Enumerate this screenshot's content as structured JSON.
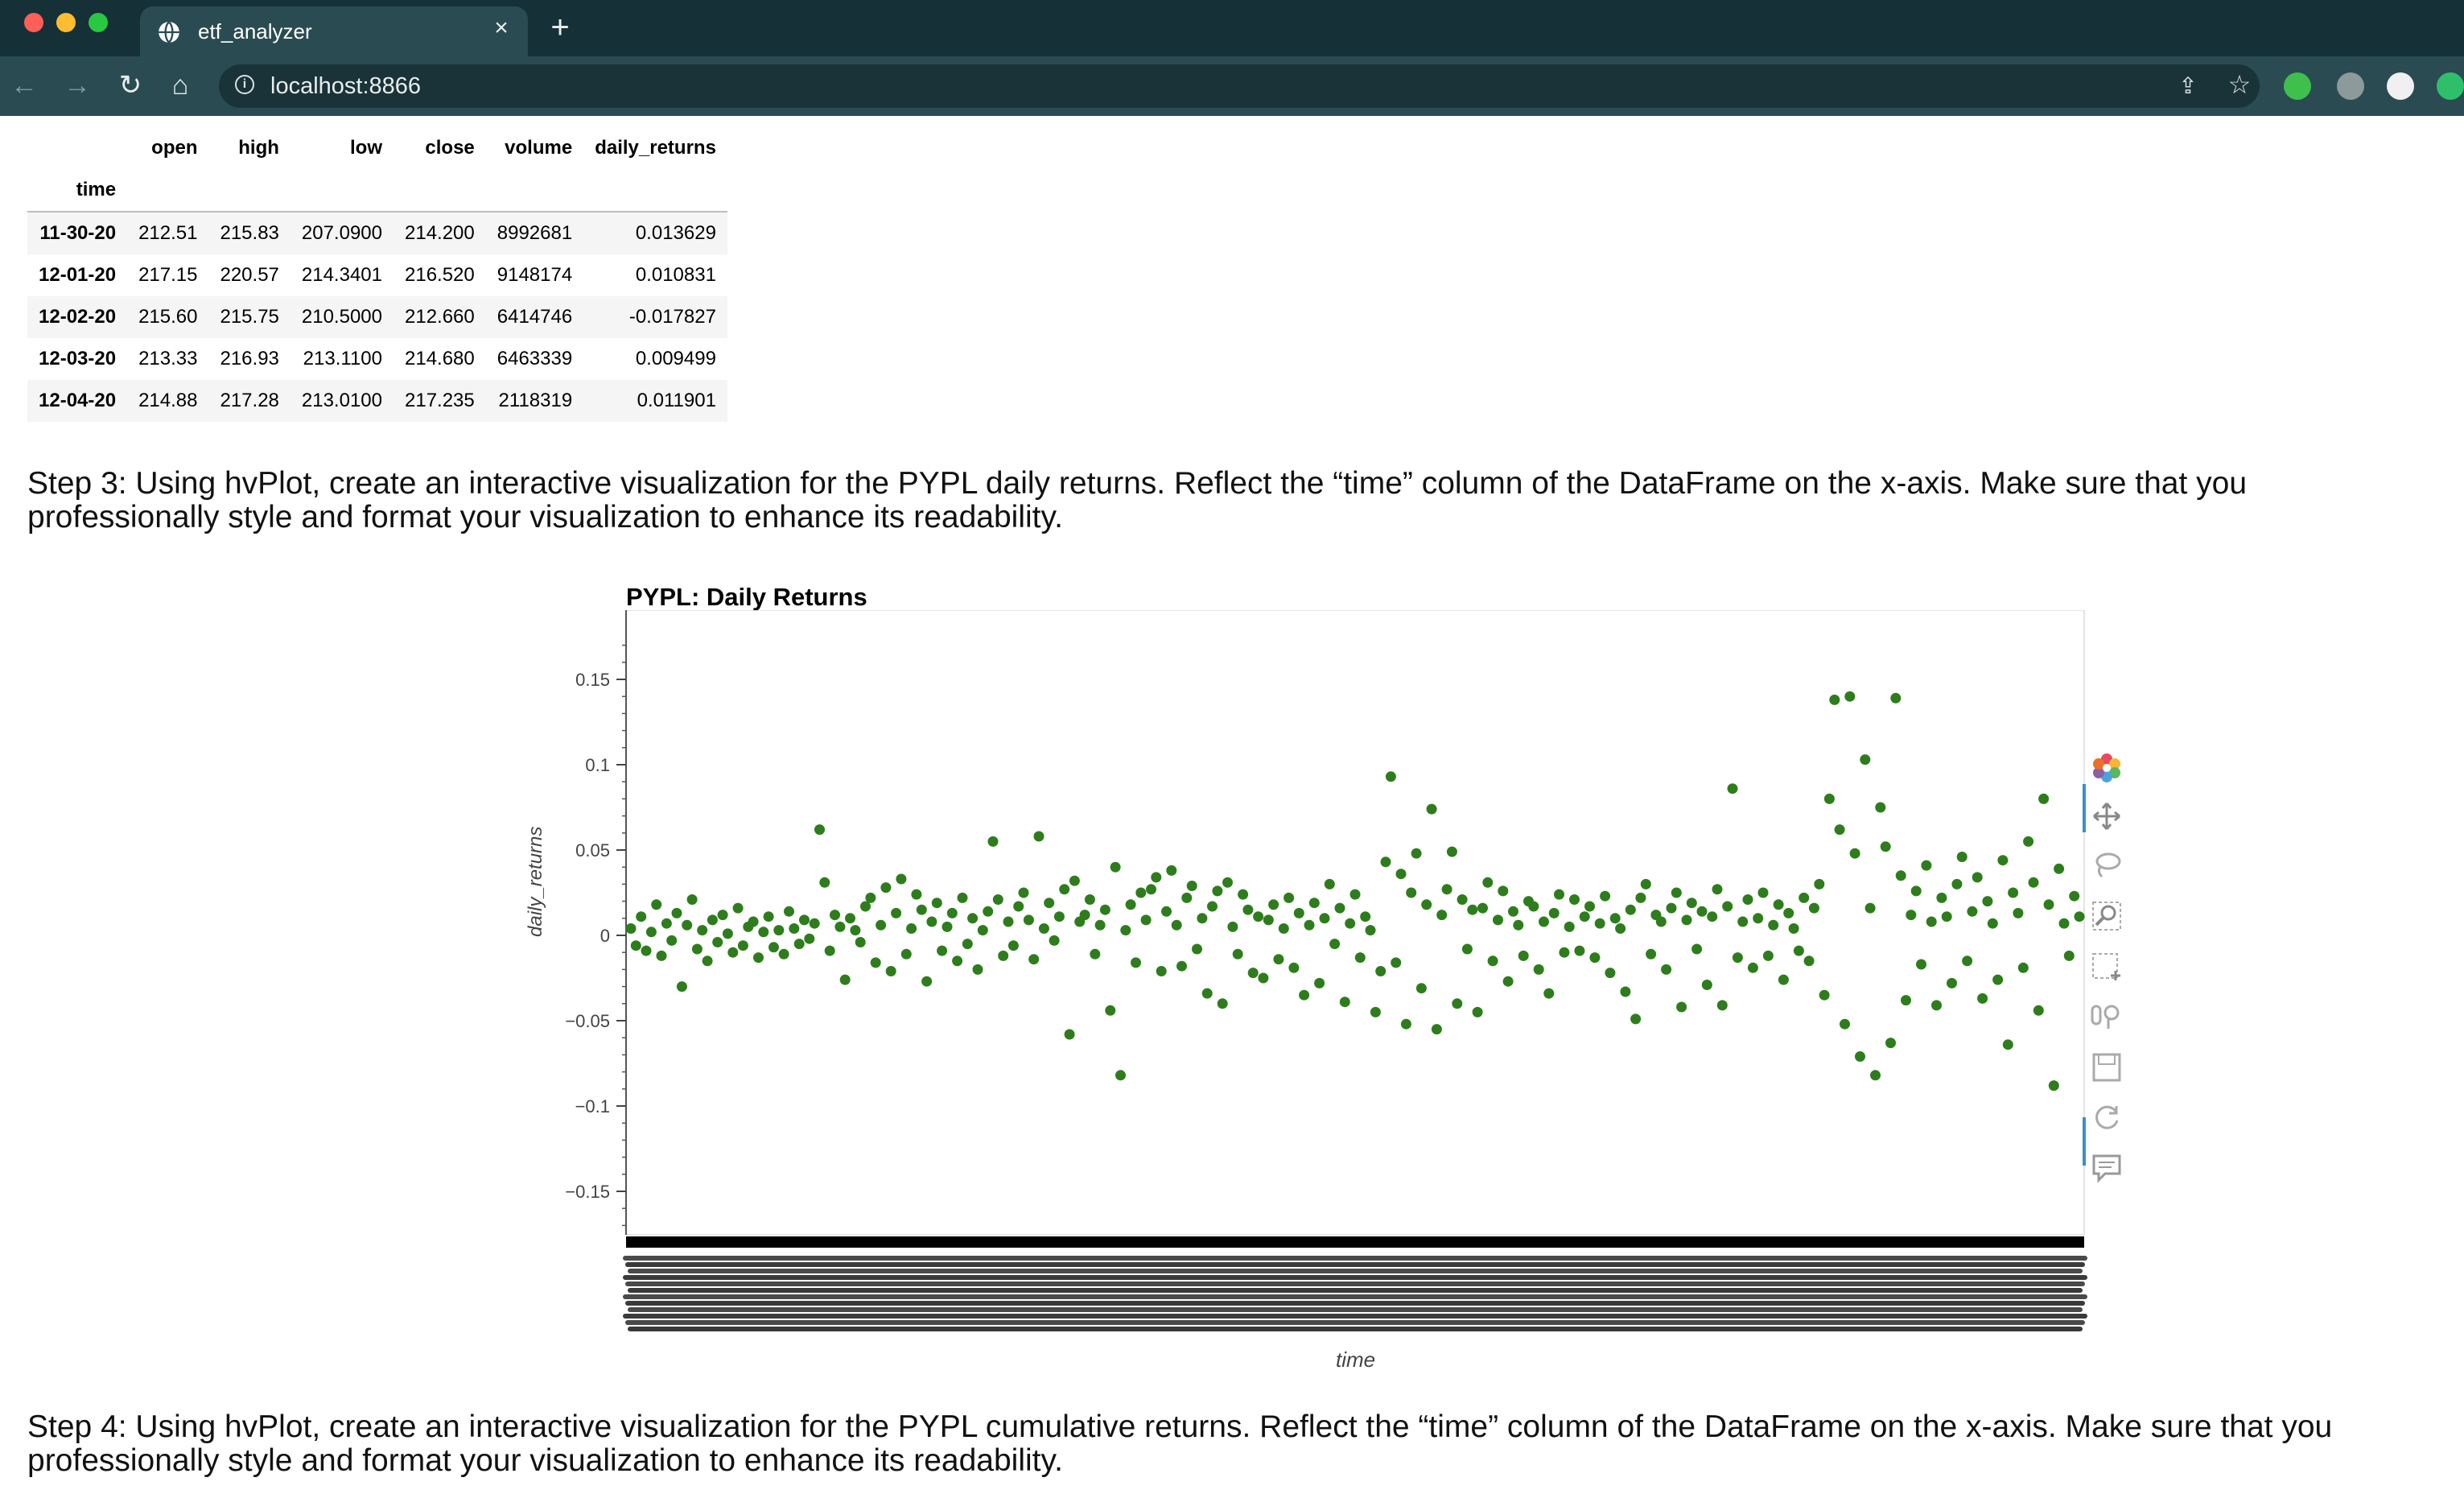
{
  "browser": {
    "tab_title": "etf_analyzer",
    "url": "localhost:8866",
    "new_tab_symbol": "+",
    "close_symbol": "×"
  },
  "dataframe": {
    "columns": [
      "open",
      "high",
      "low",
      "close",
      "volume",
      "daily_returns"
    ],
    "index_name": "time",
    "rows": [
      {
        "time": "11-30-20",
        "open": "212.51",
        "high": "215.83",
        "low": "207.0900",
        "close": "214.200",
        "volume": "8992681",
        "daily_returns": "0.013629"
      },
      {
        "time": "12-01-20",
        "open": "217.15",
        "high": "220.57",
        "low": "214.3401",
        "close": "216.520",
        "volume": "9148174",
        "daily_returns": "0.010831"
      },
      {
        "time": "12-02-20",
        "open": "215.60",
        "high": "215.75",
        "low": "210.5000",
        "close": "212.660",
        "volume": "6414746",
        "daily_returns": "-0.017827"
      },
      {
        "time": "12-03-20",
        "open": "213.33",
        "high": "216.93",
        "low": "213.1100",
        "close": "214.680",
        "volume": "6463339",
        "daily_returns": "0.009499"
      },
      {
        "time": "12-04-20",
        "open": "214.88",
        "high": "217.28",
        "low": "213.0100",
        "close": "217.235",
        "volume": "2118319",
        "daily_returns": "0.011901"
      }
    ]
  },
  "steps": {
    "step3": "Step 3: Using hvPlot, create an interactive visualization for the PYPL daily returns. Reflect the “time” column of the DataFrame on the x-axis. Make sure that you professionally style and format your visualization to enhance its readability.",
    "step4": "Step 4: Using hvPlot, create an interactive visualization for the PYPL cumulative returns. Reflect the “time” column of the DataFrame on the x-axis. Make sure that you professionally style and format your visualization to enhance its readability."
  },
  "chart_data": {
    "type": "scatter",
    "title": "PYPL: Daily Returns",
    "xlabel": "time",
    "ylabel": "daily_returns",
    "ylim": [
      -0.17,
      0.17
    ],
    "yticks": [
      0.15,
      0.1,
      0.05,
      0,
      -0.05,
      -0.1,
      -0.15
    ],
    "ytick_labels": [
      "0.15",
      "0.1",
      "0.05",
      "0",
      "−0.05",
      "−0.1",
      "−0.15"
    ],
    "grid": false,
    "marker_color": "#2e7d1c",
    "series": [
      {
        "values": [
          0.004,
          -0.006,
          0.011,
          -0.009,
          0.002,
          0.018,
          -0.012,
          0.007,
          -0.003,
          0.013,
          -0.03,
          0.006,
          0.021,
          -0.008,
          0.003,
          -0.015,
          0.009,
          -0.004,
          0.012,
          0.001,
          -0.01,
          0.016,
          -0.006,
          0.005,
          0.008,
          -0.013,
          0.002,
          0.011,
          -0.007,
          0.003,
          -0.011,
          0.014,
          0.004,
          -0.005,
          0.009,
          -0.002,
          0.007,
          0.062,
          0.031,
          -0.009,
          0.012,
          0.005,
          -0.026,
          0.01,
          0.003,
          -0.004,
          0.017,
          0.022,
          -0.016,
          0.006,
          0.028,
          -0.021,
          0.013,
          0.033,
          -0.011,
          0.004,
          0.024,
          0.015,
          -0.027,
          0.008,
          0.019,
          -0.009,
          0.005,
          0.013,
          -0.015,
          0.022,
          -0.005,
          0.01,
          -0.02,
          0.003,
          0.014,
          0.055,
          0.021,
          -0.012,
          0.008,
          -0.006,
          0.017,
          0.025,
          0.009,
          -0.014,
          0.058,
          0.004,
          0.019,
          -0.003,
          0.011,
          0.027,
          -0.058,
          0.032,
          0.008,
          0.012,
          0.021,
          -0.011,
          0.006,
          0.015,
          -0.044,
          0.04,
          -0.082,
          0.003,
          0.018,
          -0.016,
          0.025,
          0.009,
          0.027,
          0.034,
          -0.021,
          0.014,
          0.038,
          0.006,
          -0.018,
          0.022,
          0.029,
          -0.008,
          0.01,
          -0.034,
          0.017,
          0.026,
          -0.04,
          0.031,
          0.005,
          -0.011,
          0.024,
          0.015,
          -0.022,
          0.011,
          -0.025,
          0.009,
          0.018,
          -0.014,
          0.004,
          0.022,
          -0.019,
          0.013,
          -0.035,
          0.006,
          0.019,
          -0.028,
          0.01,
          0.03,
          -0.005,
          0.016,
          -0.039,
          0.007,
          0.024,
          -0.013,
          0.011,
          0.003,
          -0.045,
          -0.021,
          0.043,
          0.093,
          -0.016,
          0.036,
          -0.052,
          0.025,
          0.048,
          -0.031,
          0.018,
          0.074,
          -0.055,
          0.012,
          0.027,
          0.049,
          -0.04,
          0.021,
          -0.008,
          0.015,
          -0.045,
          0.016,
          0.031,
          -0.015,
          0.009,
          0.026,
          -0.027,
          0.014,
          0.006,
          -0.012,
          0.02,
          0.017,
          -0.02,
          0.008,
          -0.034,
          0.013,
          0.024,
          -0.01,
          0.005,
          0.021,
          -0.009,
          0.011,
          0.017,
          -0.013,
          0.007,
          0.023,
          -0.022,
          0.01,
          0.004,
          -0.033,
          0.015,
          -0.049,
          0.022,
          0.03,
          -0.011,
          0.012,
          0.008,
          -0.02,
          0.016,
          0.025,
          -0.042,
          0.009,
          0.019,
          -0.008,
          0.014,
          -0.029,
          0.011,
          0.027,
          -0.041,
          0.017,
          0.086,
          -0.013,
          0.008,
          0.021,
          -0.019,
          0.01,
          0.025,
          -0.012,
          0.006,
          0.018,
          -0.026,
          0.013,
          0.004,
          -0.009,
          0.022,
          -0.015,
          0.016,
          0.03,
          -0.035,
          0.08,
          0.138,
          0.062,
          -0.052,
          0.14,
          0.048,
          -0.071,
          0.103,
          0.016,
          -0.082,
          0.075,
          0.052,
          -0.063,
          0.139,
          0.035,
          -0.038,
          0.012,
          0.026,
          -0.017,
          0.041,
          0.008,
          -0.041,
          0.022,
          0.011,
          -0.028,
          0.03,
          0.046,
          -0.015,
          0.014,
          0.034,
          -0.037,
          0.02,
          0.007,
          -0.026,
          0.044,
          -0.064,
          0.025,
          0.013,
          -0.019,
          0.055,
          0.031,
          -0.044,
          0.08,
          0.018,
          -0.088,
          0.039,
          0.007,
          -0.012,
          0.023,
          0.011
        ]
      }
    ]
  },
  "bokeh_tools": [
    "bokeh-logo-icon",
    "pan-icon",
    "lasso-select-icon",
    "box-zoom-icon",
    "box-select-icon",
    "wheel-zoom-icon",
    "save-icon",
    "reset-icon",
    "hover-icon"
  ]
}
